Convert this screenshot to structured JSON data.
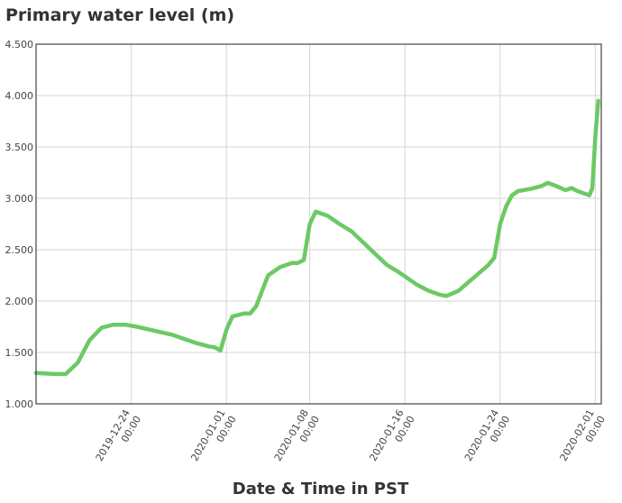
{
  "colors": {
    "line": "#6cc965",
    "grid": "#d6d6d6",
    "frame": "#444444",
    "text": "#444444"
  },
  "chart_data": {
    "type": "line",
    "title": "Primary water level (m)",
    "xlabel": "Date & Time in PST",
    "ylabel": "",
    "ylim": [
      1.0,
      4.5
    ],
    "xlim": [
      "2019-12-16 00:00",
      "2020-02-01 12:00"
    ],
    "y_ticks": [
      "1.000",
      "1.500",
      "2.000",
      "2.500",
      "3.000",
      "3.500",
      "4.000",
      "4.500"
    ],
    "x_ticks": [
      {
        "date": "2019-12-24",
        "time": "00:00"
      },
      {
        "date": "2020-01-01",
        "time": "00:00"
      },
      {
        "date": "2020-01-08",
        "time": "00:00"
      },
      {
        "date": "2020-01-16",
        "time": "00:00"
      },
      {
        "date": "2020-01-24",
        "time": "00:00"
      },
      {
        "date": "2020-02-01",
        "time": "00:00"
      }
    ],
    "grid": true,
    "series": [
      {
        "x": [
          "2019-12-16 00:00",
          "2019-12-17 12:00",
          "2019-12-18 12:00",
          "2019-12-19 12:00",
          "2019-12-20 12:00",
          "2019-12-21 12:00",
          "2019-12-22 12:00",
          "2019-12-23 12:00",
          "2019-12-24 12:00",
          "2019-12-26 00:00",
          "2019-12-27 12:00",
          "2019-12-28 12:00",
          "2019-12-29 12:00",
          "2019-12-30 12:00",
          "2019-12-31 00:00",
          "2019-12-31 12:00",
          "2020-01-01 00:00",
          "2020-01-01 12:00",
          "2020-01-02 12:00",
          "2020-01-03 00:00",
          "2020-01-03 12:00",
          "2020-01-04 00:00",
          "2020-01-04 12:00",
          "2020-01-05 12:00",
          "2020-01-06 12:00",
          "2020-01-07 00:00",
          "2020-01-07 12:00",
          "2020-01-08 00:00",
          "2020-01-08 12:00",
          "2020-01-09 12:00",
          "2020-01-10 12:00",
          "2020-01-11 12:00",
          "2020-01-12 12:00",
          "2020-01-13 12:00",
          "2020-01-14 12:00",
          "2020-01-15 12:00",
          "2020-01-16 00:00",
          "2020-01-17 00:00",
          "2020-01-18 00:00",
          "2020-01-19 00:00",
          "2020-01-19 12:00",
          "2020-01-20 12:00",
          "2020-01-21 12:00",
          "2020-01-22 12:00",
          "2020-01-23 00:00",
          "2020-01-23 12:00",
          "2020-01-24 00:00",
          "2020-01-24 12:00",
          "2020-01-25 00:00",
          "2020-01-25 12:00",
          "2020-01-26 12:00",
          "2020-01-27 12:00",
          "2020-01-28 00:00",
          "2020-01-28 12:00",
          "2020-01-29 12:00",
          "2020-01-30 00:00",
          "2020-01-30 12:00",
          "2020-01-31 12:00",
          "2020-01-31 18:00",
          "2020-02-01 00:00",
          "2020-02-01 06:00"
        ],
        "y": [
          1.3,
          1.29,
          1.29,
          1.4,
          1.62,
          1.74,
          1.77,
          1.77,
          1.75,
          1.71,
          1.67,
          1.63,
          1.59,
          1.56,
          1.55,
          1.52,
          1.72,
          1.85,
          1.88,
          1.88,
          1.95,
          2.1,
          2.25,
          2.33,
          2.37,
          2.37,
          2.4,
          2.75,
          2.87,
          2.83,
          2.75,
          2.68,
          2.57,
          2.46,
          2.35,
          2.28,
          2.24,
          2.16,
          2.1,
          2.06,
          2.05,
          2.1,
          2.2,
          2.3,
          2.35,
          2.42,
          2.75,
          2.92,
          3.03,
          3.07,
          3.09,
          3.12,
          3.15,
          3.13,
          3.08,
          3.1,
          3.07,
          3.03,
          3.1,
          3.6,
          3.95
        ]
      }
    ]
  }
}
